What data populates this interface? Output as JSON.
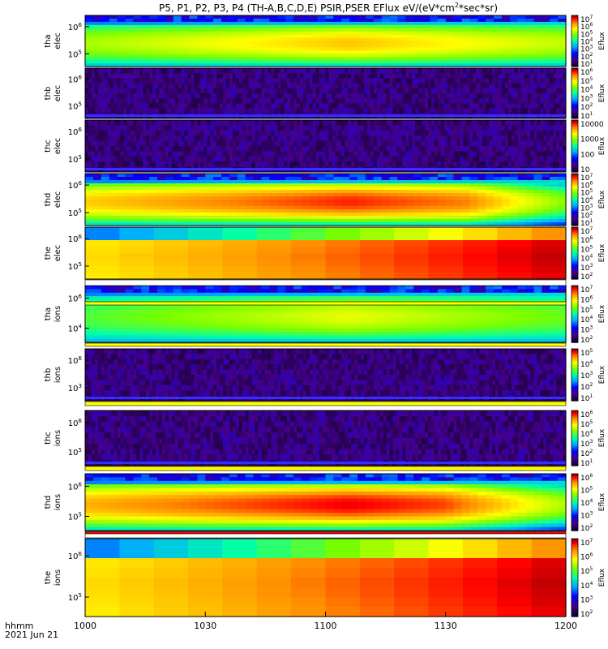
{
  "title": "P5, P1, P2, P3, P4 (TH-A,B,C,D,E) PSIR,PSER EFlux eV/(eV*cm^2*sec*sr)",
  "colors": {
    "background": "#ffffff",
    "separator_white": "#ffffff",
    "separator_yellow": "#ffff00",
    "separator_red": "#ff0000",
    "noise": "#3a1060"
  },
  "chart_data": {
    "type": "heatmap",
    "xlabel_line1": "hhmm",
    "xlabel_line2": "2021 Jun 21",
    "x_ticks": [
      "1000",
      "1030",
      "1100",
      "1130",
      "1200"
    ],
    "x_range": [
      "10:00",
      "12:00"
    ],
    "colorbar_label": "Eflux",
    "panels": [
      {
        "id": "tha-elec",
        "label1": "tha",
        "label2": "elec",
        "y_ticks": [
          "10^6",
          "10^5"
        ],
        "cb_ticks": [
          "10^7",
          "10^6",
          "10^5",
          "10^4",
          "10^3",
          "10^2",
          "10^1"
        ],
        "pattern": "smooth",
        "peak": 0.8
      },
      {
        "id": "thb-elec",
        "label1": "thb",
        "label2": "elec",
        "y_ticks": [
          "10^6",
          "10^5"
        ],
        "cb_ticks": [
          "10^6",
          "10^5",
          "10^4",
          "10^3",
          "10^2",
          "10^1"
        ],
        "pattern": "noise"
      },
      {
        "id": "thc-elec",
        "label1": "thc",
        "label2": "elec",
        "y_ticks": [
          "10^6",
          "10^5"
        ],
        "cb_ticks": [
          "10000",
          "1000",
          "100",
          "10"
        ],
        "pattern": "noise"
      },
      {
        "id": "thd-elec",
        "label1": "thd",
        "label2": "elec",
        "y_ticks": [
          "10^6",
          "10^5"
        ],
        "cb_ticks": [
          "10^7",
          "10^6",
          "10^5",
          "10^4",
          "10^3",
          "10^2",
          "10^1"
        ],
        "pattern": "smooth",
        "peak": 0.93
      },
      {
        "id": "the-elec",
        "label1": "the",
        "label2": "elec",
        "y_ticks": [
          "10^6",
          "10^5"
        ],
        "cb_ticks": [
          "10^7",
          "10^6",
          "10^5",
          "10^4",
          "10^3",
          "10^2"
        ],
        "pattern": "blocky"
      },
      {
        "id": "tha-ions",
        "label1": "tha",
        "label2": "ions",
        "y_ticks": [
          "10^6",
          "10^4"
        ],
        "cb_ticks": [
          "10^7",
          "10^6",
          "10^5",
          "10^4",
          "10^3",
          "10^2"
        ],
        "pattern": "smooth",
        "peak": 0.72
      },
      {
        "id": "thb-ions",
        "label1": "thb",
        "label2": "ions",
        "y_ticks": [
          "10^6",
          "10^3"
        ],
        "cb_ticks": [
          "10^5",
          "10^4",
          "10^3",
          "10^2",
          "10^1"
        ],
        "pattern": "noise"
      },
      {
        "id": "thc-ions",
        "label1": "thc",
        "label2": "ions",
        "y_ticks": [
          "10^6",
          "10^5"
        ],
        "cb_ticks": [
          "10^6",
          "10^5",
          "10^4",
          "10^3",
          "10^2",
          "10^1"
        ],
        "pattern": "noise"
      },
      {
        "id": "thd-ions",
        "label1": "thd",
        "label2": "ions",
        "y_ticks": [
          "10^6",
          "10^5"
        ],
        "cb_ticks": [
          "10^6",
          "10^5",
          "10^4",
          "10^3",
          "10^2"
        ],
        "pattern": "smooth",
        "peak": 0.96
      },
      {
        "id": "the-ions",
        "label1": "the",
        "label2": "ions",
        "y_ticks": [
          "10^6",
          "10^5"
        ],
        "cb_ticks": [
          "10^7",
          "10^6",
          "10^5",
          "10^4",
          "10^3",
          "10^2"
        ],
        "pattern": "blocky"
      }
    ]
  }
}
